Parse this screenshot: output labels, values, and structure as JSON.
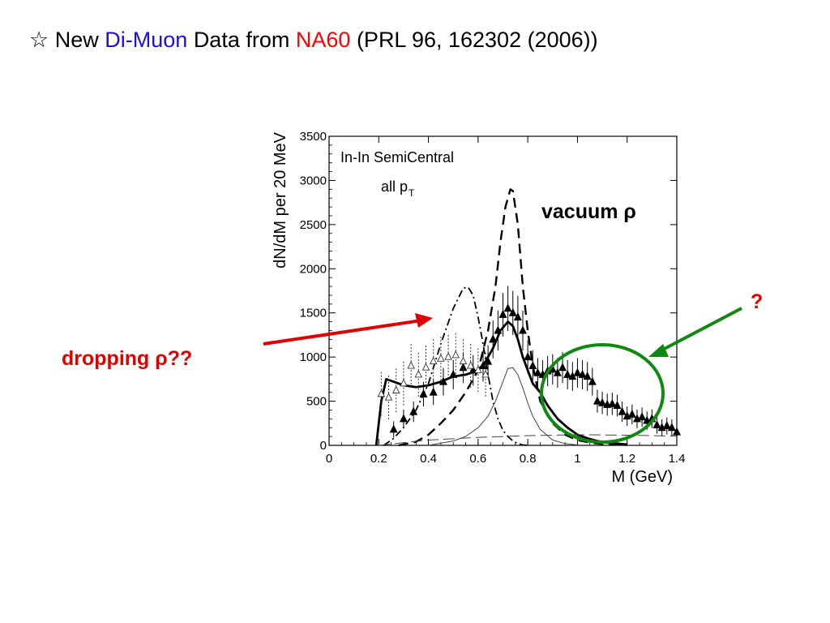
{
  "slide": {
    "title_star": "☆",
    "title_new": "New",
    "title_dimuon": "Di-Muon",
    "title_data_from": "Data from",
    "title_na60": "NA60",
    "title_ref": "(PRL 96, 162302 (2006))",
    "label_dropping": "dropping ρ??",
    "label_vacuum": "vacuum ρ",
    "label_question": "?"
  },
  "colors": {
    "title_blue": "#1a10e0",
    "title_red": "#ff0000",
    "arrow_red": "#e00000",
    "circle_green": "#118811"
  },
  "chart_data": {
    "type": "line",
    "xlabel": "M (GeV)",
    "ylabel": "dN/dM per 20 MeV",
    "annotation_1": "In-In SemiCentral",
    "annotation_2_main": "all p",
    "annotation_2_sub": "T",
    "xlim": [
      0,
      1.4
    ],
    "ylim": [
      0,
      3500
    ],
    "xticks": [
      0,
      0.2,
      0.4,
      0.6,
      0.8,
      1,
      1.2,
      1.4
    ],
    "xtick_labels": [
      "0",
      "0.2",
      "0.4",
      "0.6",
      "0.8",
      "1",
      "1.2",
      "1.4"
    ],
    "yticks": [
      0,
      500,
      1000,
      1500,
      2000,
      2500,
      3000,
      3500
    ],
    "ytick_labels": [
      "0",
      "500",
      "1000",
      "1500",
      "2000",
      "2500",
      "3000",
      "3500"
    ],
    "series": [
      {
        "style": "solid-thick",
        "x": [
          0.19,
          0.21,
          0.23,
          0.26,
          0.3,
          0.35,
          0.4,
          0.45,
          0.5,
          0.55,
          0.6,
          0.63,
          0.66,
          0.69,
          0.72,
          0.74,
          0.76,
          0.78,
          0.8,
          0.82,
          0.85,
          0.88,
          0.92,
          0.96,
          1.0,
          1.04,
          1.08,
          1.12,
          1.16,
          1.2
        ],
        "y": [
          0,
          500,
          750,
          720,
          680,
          660,
          680,
          720,
          780,
          800,
          850,
          950,
          1100,
          1300,
          1400,
          1350,
          1200,
          1000,
          850,
          700,
          600,
          450,
          300,
          200,
          120,
          80,
          50,
          30,
          20,
          10
        ]
      },
      {
        "style": "dashed",
        "x": [
          0.28,
          0.35,
          0.4,
          0.45,
          0.5,
          0.55,
          0.6,
          0.64,
          0.67,
          0.69,
          0.71,
          0.73,
          0.74,
          0.76,
          0.78,
          0.8,
          0.82,
          0.85,
          0.9,
          0.95,
          1.0,
          1.05,
          1.1,
          1.2
        ],
        "y": [
          0,
          40,
          120,
          250,
          400,
          600,
          850,
          1300,
          1800,
          2300,
          2700,
          2900,
          2880,
          2500,
          1800,
          1300,
          900,
          500,
          250,
          120,
          60,
          30,
          15,
          5
        ]
      },
      {
        "style": "dash-dot",
        "x": [
          0.22,
          0.26,
          0.3,
          0.35,
          0.4,
          0.45,
          0.5,
          0.54,
          0.56,
          0.58,
          0.6,
          0.62,
          0.64,
          0.66,
          0.68,
          0.7,
          0.72,
          0.74,
          0.76,
          0.78,
          0.8
        ],
        "y": [
          0,
          80,
          200,
          400,
          700,
          1150,
          1550,
          1780,
          1790,
          1700,
          1450,
          1150,
          800,
          500,
          300,
          170,
          100,
          50,
          20,
          5,
          0
        ]
      },
      {
        "style": "solid-thin",
        "x": [
          0.4,
          0.5,
          0.55,
          0.6,
          0.64,
          0.67,
          0.7,
          0.72,
          0.74,
          0.76,
          0.78,
          0.8,
          0.82,
          0.85,
          0.9,
          0.95,
          1.0
        ],
        "y": [
          0,
          50,
          100,
          200,
          330,
          500,
          720,
          870,
          880,
          800,
          650,
          480,
          330,
          180,
          60,
          20,
          5
        ]
      },
      {
        "style": "long-dash-background",
        "x": [
          0.2,
          0.4,
          0.6,
          0.8,
          1.0,
          1.2,
          1.4
        ],
        "y": [
          0,
          60,
          90,
          110,
          120,
          115,
          105
        ]
      },
      {
        "name": "",
        "style": "filled-triangles",
        "x": [
          0.26,
          0.3,
          0.34,
          0.38,
          0.42,
          0.46,
          0.5,
          0.54,
          0.58,
          0.62,
          0.64,
          0.66,
          0.68,
          0.7,
          0.72,
          0.74,
          0.76,
          0.78,
          0.8,
          0.82,
          0.84,
          0.86,
          0.88,
          0.9,
          0.92,
          0.94,
          0.96,
          0.98,
          1.0,
          1.02,
          1.04,
          1.06,
          1.08,
          1.1,
          1.12,
          1.14,
          1.16,
          1.18,
          1.2,
          1.22,
          1.24,
          1.26,
          1.28,
          1.3,
          1.32,
          1.34,
          1.36,
          1.38,
          1.4
        ],
        "y": [
          180,
          300,
          380,
          580,
          600,
          720,
          800,
          880,
          850,
          900,
          950,
          1200,
          1300,
          1480,
          1550,
          1500,
          1450,
          1300,
          1000,
          900,
          820,
          800,
          840,
          860,
          820,
          880,
          800,
          780,
          820,
          800,
          780,
          720,
          500,
          480,
          460,
          470,
          450,
          380,
          330,
          350,
          300,
          320,
          280,
          300,
          230,
          200,
          220,
          200,
          150
        ]
      },
      {
        "name": "",
        "style": "open-triangles-dotted",
        "x": [
          0.21,
          0.24,
          0.27,
          0.3,
          0.33,
          0.36,
          0.39,
          0.42,
          0.45,
          0.48,
          0.51,
          0.54,
          0.57,
          0.6,
          0.63
        ],
        "y": [
          580,
          540,
          620,
          700,
          900,
          800,
          880,
          950,
          980,
          1000,
          1020,
          950,
          900,
          850,
          800
        ]
      }
    ]
  }
}
